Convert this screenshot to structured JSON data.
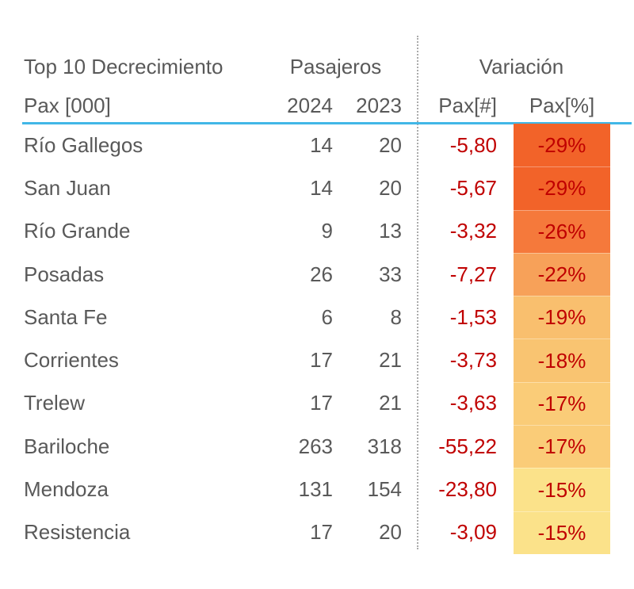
{
  "table": {
    "group_headers": {
      "title": "Top 10 Decrecimiento",
      "pasajeros": "Pasajeros",
      "variacion": "Variación"
    },
    "columns": {
      "name": "Pax [000]",
      "y2024": "2024",
      "y2023": "2023",
      "pax_num": "Pax[#]",
      "pax_pct": "Pax[%]"
    },
    "rows": [
      {
        "name": "Río Gallegos",
        "y2024": "14",
        "y2023": "20",
        "pax_num": "-5,80",
        "pax_pct": "-29%",
        "bg": "#F26329"
      },
      {
        "name": "San Juan",
        "y2024": "14",
        "y2023": "20",
        "pax_num": "-5,67",
        "pax_pct": "-29%",
        "bg": "#F26329"
      },
      {
        "name": "Río Grande",
        "y2024": "9",
        "y2023": "13",
        "pax_num": "-3,32",
        "pax_pct": "-26%",
        "bg": "#F5793B"
      },
      {
        "name": "Posadas",
        "y2024": "26",
        "y2023": "33",
        "pax_num": "-7,27",
        "pax_pct": "-22%",
        "bg": "#F7A159"
      },
      {
        "name": "Santa Fe",
        "y2024": "6",
        "y2023": "8",
        "pax_num": "-1,53",
        "pax_pct": "-19%",
        "bg": "#F9BF6E"
      },
      {
        "name": "Corrientes",
        "y2024": "17",
        "y2023": "21",
        "pax_num": "-3,73",
        "pax_pct": "-18%",
        "bg": "#F9C471"
      },
      {
        "name": "Trelew",
        "y2024": "17",
        "y2023": "21",
        "pax_num": "-3,63",
        "pax_pct": "-17%",
        "bg": "#FACC78"
      },
      {
        "name": "Bariloche",
        "y2024": "263",
        "y2023": "318",
        "pax_num": "-55,22",
        "pax_pct": "-17%",
        "bg": "#FACC78"
      },
      {
        "name": "Mendoza",
        "y2024": "131",
        "y2023": "154",
        "pax_num": "-23,80",
        "pax_pct": "-15%",
        "bg": "#FBE28A"
      },
      {
        "name": "Resistencia",
        "y2024": "17",
        "y2023": "20",
        "pax_num": "-3,09",
        "pax_pct": "-15%",
        "bg": "#FBE28A"
      }
    ],
    "colors": {
      "text_gray": "#595959",
      "value_red": "#C00000",
      "header_underline_blue": "#41B7E7",
      "dotted_separator_gray": "#ABABAB"
    }
  },
  "chart_data": {
    "type": "table",
    "title": "Top 10 Decrecimiento",
    "units": "Pax [000]",
    "column_groups": [
      {
        "label": "Pasajeros",
        "spans": [
          "2024",
          "2023"
        ]
      },
      {
        "label": "Variación",
        "spans": [
          "Pax[#]",
          "Pax[%]"
        ]
      }
    ],
    "columns": [
      "Pax [000]",
      "2024",
      "2023",
      "Pax[#]",
      "Pax[%]"
    ],
    "rows": [
      {
        "name": "Río Gallegos",
        "pax_2024": 14,
        "pax_2023": 20,
        "variation_abs": -5.8,
        "variation_pct": -29
      },
      {
        "name": "San Juan",
        "pax_2024": 14,
        "pax_2023": 20,
        "variation_abs": -5.67,
        "variation_pct": -29
      },
      {
        "name": "Río Grande",
        "pax_2024": 9,
        "pax_2023": 13,
        "variation_abs": -3.32,
        "variation_pct": -26
      },
      {
        "name": "Posadas",
        "pax_2024": 26,
        "pax_2023": 33,
        "variation_abs": -7.27,
        "variation_pct": -22
      },
      {
        "name": "Santa Fe",
        "pax_2024": 6,
        "pax_2023": 8,
        "variation_abs": -1.53,
        "variation_pct": -19
      },
      {
        "name": "Corrientes",
        "pax_2024": 17,
        "pax_2023": 21,
        "variation_abs": -3.73,
        "variation_pct": -18
      },
      {
        "name": "Trelew",
        "pax_2024": 17,
        "pax_2023": 21,
        "variation_abs": -3.63,
        "variation_pct": -17
      },
      {
        "name": "Bariloche",
        "pax_2024": 263,
        "pax_2023": 318,
        "variation_abs": -55.22,
        "variation_pct": -17
      },
      {
        "name": "Mendoza",
        "pax_2024": 131,
        "pax_2023": 154,
        "variation_abs": -23.8,
        "variation_pct": -15
      },
      {
        "name": "Resistencia",
        "pax_2024": 17,
        "pax_2023": 20,
        "variation_abs": -3.09,
        "variation_pct": -15
      }
    ],
    "conditional_formatting": {
      "column": "Pax[%]",
      "scale": "orange-to-yellow, larger decrease = darker orange",
      "cell_colors": [
        "#F26329",
        "#F26329",
        "#F5793B",
        "#F7A159",
        "#F9BF6E",
        "#F9C471",
        "#FACC78",
        "#FACC78",
        "#FBE28A",
        "#FBE28A"
      ]
    }
  }
}
